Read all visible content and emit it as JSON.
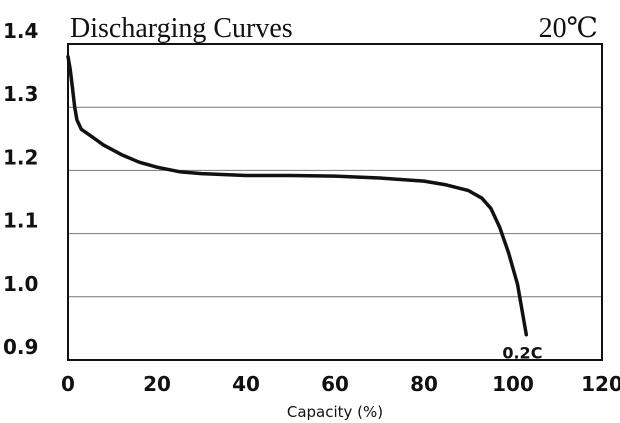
{
  "chart_data": {
    "type": "line",
    "title": "Discharging Curves",
    "temperature": "20℃",
    "xlabel": "Capacity (%)",
    "ylabel": "",
    "xlim": [
      0,
      120
    ],
    "ylim": [
      0.9,
      1.4
    ],
    "x_ticks": [
      "0",
      "20",
      "40",
      "60",
      "80",
      "100",
      "120"
    ],
    "y_ticks": [
      "1.4",
      "1.3",
      "1.2",
      "1.1",
      "1.0",
      "0.9"
    ],
    "grid": "horizontal",
    "colors": {
      "line": "#111111",
      "grid": "#777777",
      "frame": "#111111"
    },
    "series": [
      {
        "name": "0.2C",
        "x": [
          0,
          0.5,
          1,
          1.5,
          2,
          3,
          5,
          8,
          12,
          16,
          20,
          25,
          30,
          40,
          50,
          60,
          70,
          80,
          85,
          90,
          93,
          95,
          97,
          99,
          101,
          102,
          103
        ],
        "y": [
          1.38,
          1.36,
          1.33,
          1.3,
          1.28,
          1.265,
          1.255,
          1.24,
          1.225,
          1.213,
          1.205,
          1.198,
          1.195,
          1.192,
          1.192,
          1.191,
          1.188,
          1.183,
          1.177,
          1.168,
          1.156,
          1.14,
          1.11,
          1.07,
          1.02,
          0.98,
          0.94
        ]
      }
    ]
  }
}
